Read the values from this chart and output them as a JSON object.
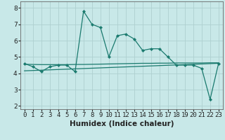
{
  "xlabel": "Humidex (Indice chaleur)",
  "x": [
    0,
    1,
    2,
    3,
    4,
    5,
    6,
    7,
    8,
    9,
    10,
    11,
    12,
    13,
    14,
    15,
    16,
    17,
    18,
    19,
    20,
    21,
    22,
    23
  ],
  "y_main": [
    4.6,
    4.4,
    4.1,
    4.4,
    4.5,
    4.5,
    4.1,
    7.8,
    7.0,
    6.8,
    5.0,
    6.3,
    6.4,
    6.1,
    5.4,
    5.5,
    5.5,
    5.0,
    4.5,
    4.5,
    4.5,
    4.3,
    2.4,
    4.6
  ],
  "y_trend1": [
    4.15,
    4.17,
    4.19,
    4.21,
    4.23,
    4.25,
    4.27,
    4.29,
    4.31,
    4.33,
    4.35,
    4.37,
    4.39,
    4.41,
    4.43,
    4.45,
    4.47,
    4.49,
    4.51,
    4.53,
    4.55,
    4.57,
    4.59,
    4.61
  ],
  "y_trend2": [
    4.55,
    4.54,
    4.53,
    4.53,
    4.53,
    4.53,
    4.54,
    4.54,
    4.55,
    4.56,
    4.57,
    4.58,
    4.59,
    4.6,
    4.61,
    4.61,
    4.62,
    4.62,
    4.63,
    4.63,
    4.63,
    4.63,
    4.64,
    4.64
  ],
  "ylim": [
    1.8,
    8.4
  ],
  "yticks": [
    2,
    3,
    4,
    5,
    6,
    7,
    8
  ],
  "xlim": [
    -0.5,
    23.5
  ],
  "line_color": "#1a7a6e",
  "bg_color": "#c8e8e8",
  "grid_color": "#aed0d0",
  "text_color": "#222222",
  "axis_fontsize": 7.5,
  "tick_fontsize": 6.5
}
